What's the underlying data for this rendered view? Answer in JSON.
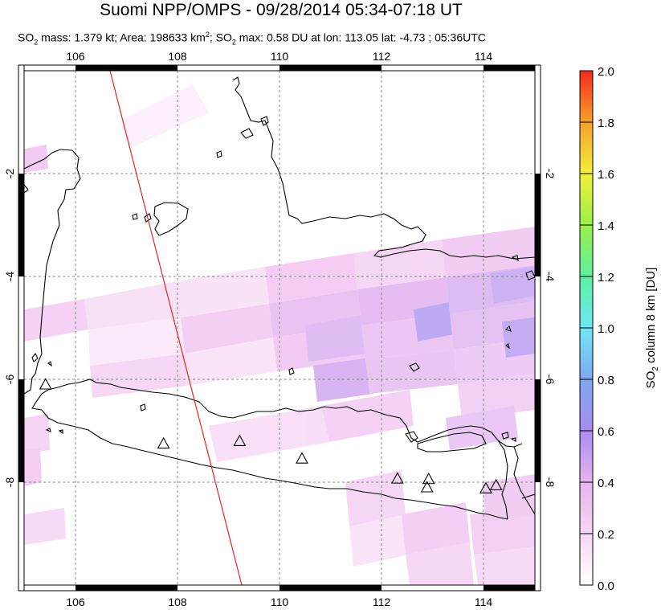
{
  "title": "Suomi NPP/OMPS - 09/28/2014 05:34-07:18 UT",
  "subtitle": {
    "so2_mass_prefix": "SO",
    "so2_mass_text": " mass: 1.379 kt; Area: 198633 km",
    "area_sup": "2",
    "so2_max_prefix": "; SO",
    "so2_max_text": " max: 0.58 DU at lon: 113.05 lat: -4.73 ; 05:36UTC",
    "sub2": "2"
  },
  "map": {
    "lon_ticks": [
      "106",
      "108",
      "110",
      "112",
      "114"
    ],
    "lat_ticks": [
      "-2",
      "-4",
      "-6",
      "-8"
    ],
    "lon_range": [
      105,
      115
    ],
    "lat_range": [
      -10,
      0
    ],
    "grid": true,
    "colors": {
      "coast": "#000000",
      "track": "#e8251b",
      "grid": "#888888",
      "frame": "#000000"
    }
  },
  "volcanoes": [
    {
      "name": "volcano-marker",
      "lon": 105.42,
      "lat": -6.1
    },
    {
      "name": "volcano-marker",
      "lon": 107.73,
      "lat": -7.25
    },
    {
      "name": "volcano-marker",
      "lon": 109.22,
      "lat": -7.2
    },
    {
      "name": "volcano-marker",
      "lon": 110.44,
      "lat": -7.54
    },
    {
      "name": "volcano-marker",
      "lon": 112.31,
      "lat": -7.93
    },
    {
      "name": "volcano-marker",
      "lon": 112.92,
      "lat": -7.94
    },
    {
      "name": "volcano-marker",
      "lon": 112.89,
      "lat": -8.1
    },
    {
      "name": "volcano-marker",
      "lon": 114.04,
      "lat": -8.12
    },
    {
      "name": "volcano-marker",
      "lon": 114.24,
      "lat": -8.06
    }
  ],
  "colorbar": {
    "labels": [
      "2.0",
      "1.8",
      "1.6",
      "1.4",
      "1.2",
      "1.0",
      "0.8",
      "0.6",
      "0.4",
      "0.2",
      "0.0"
    ],
    "title_prefix": "SO",
    "title_sub": "2",
    "title_suffix": " column 8 km [DU]",
    "range": [
      0,
      2
    ]
  }
}
